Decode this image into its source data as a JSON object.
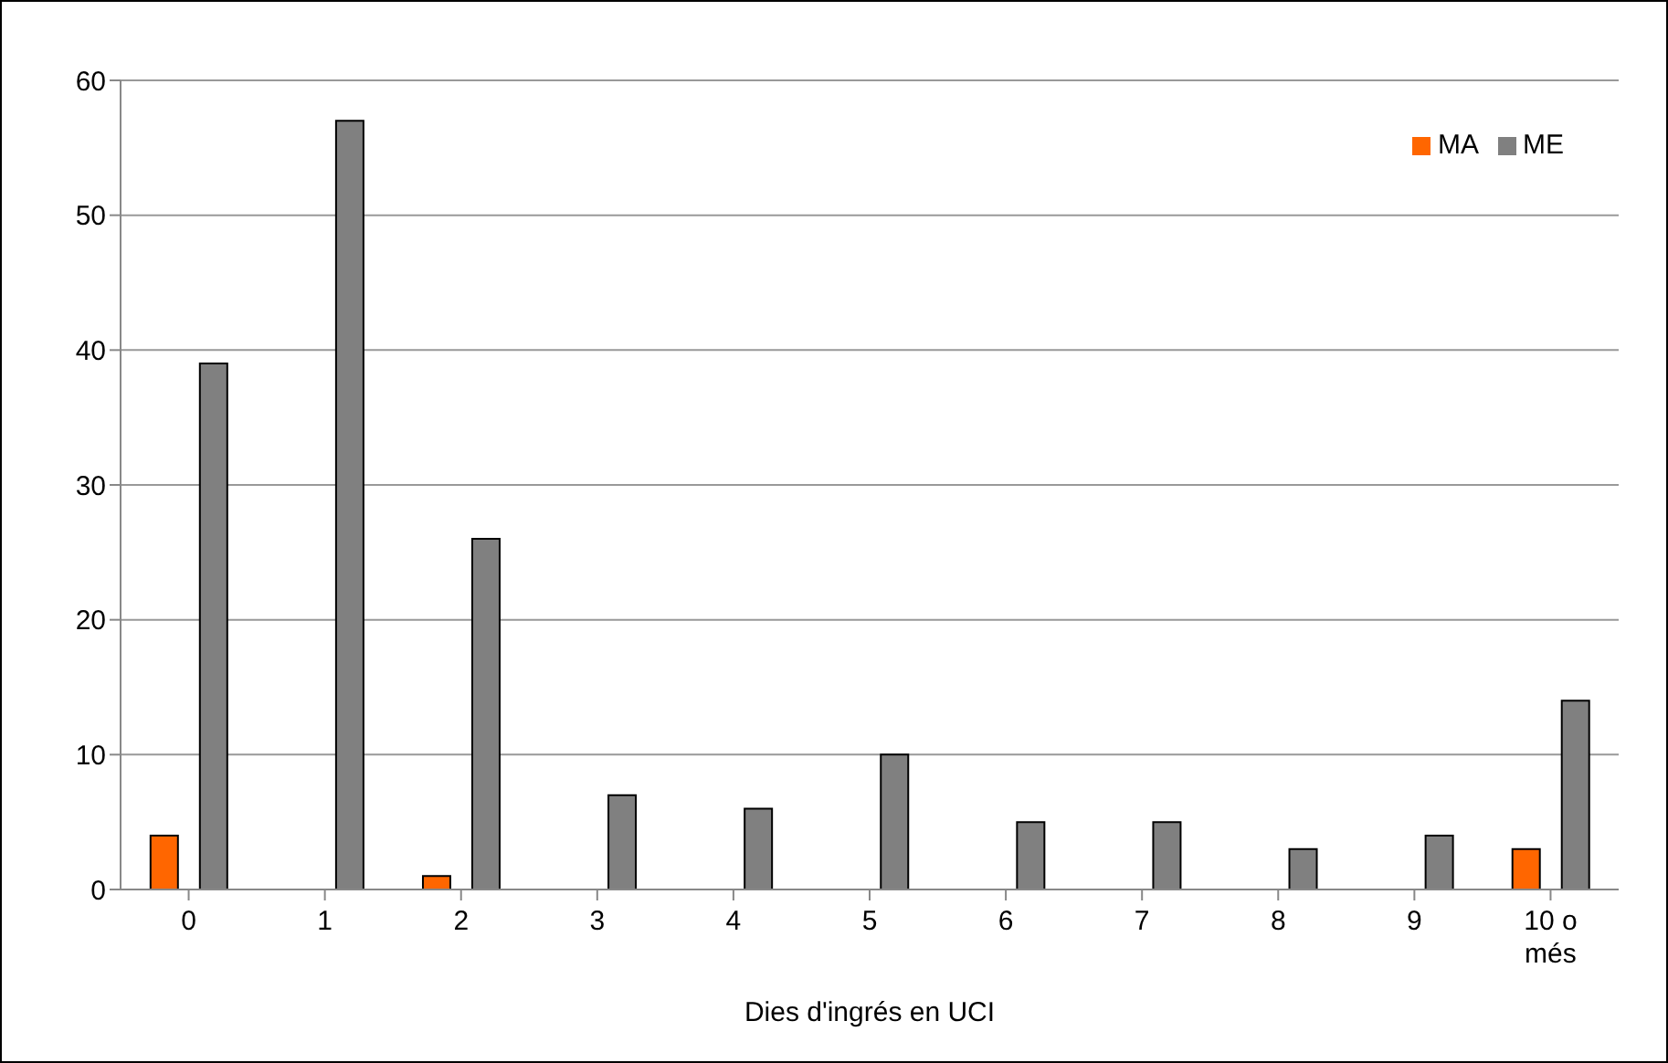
{
  "chart_data": {
    "type": "bar",
    "xlabel": "Dies d'ingrés en UCI",
    "categories": [
      "0",
      "1",
      "2",
      "3",
      "4",
      "5",
      "6",
      "7",
      "8",
      "9",
      "10 o més"
    ],
    "series": [
      {
        "name": "MA",
        "color": "#ff6600",
        "values": [
          4,
          0,
          1,
          0,
          0,
          0,
          0,
          0,
          0,
          0,
          3
        ]
      },
      {
        "name": "ME",
        "color": "#808080",
        "values": [
          39,
          57,
          26,
          7,
          6,
          10,
          5,
          5,
          3,
          4,
          14
        ]
      }
    ],
    "ylim": [
      0,
      60
    ],
    "yticks": [
      0,
      10,
      20,
      30,
      40,
      50,
      60
    ],
    "grid": "y",
    "legend": "top right"
  }
}
